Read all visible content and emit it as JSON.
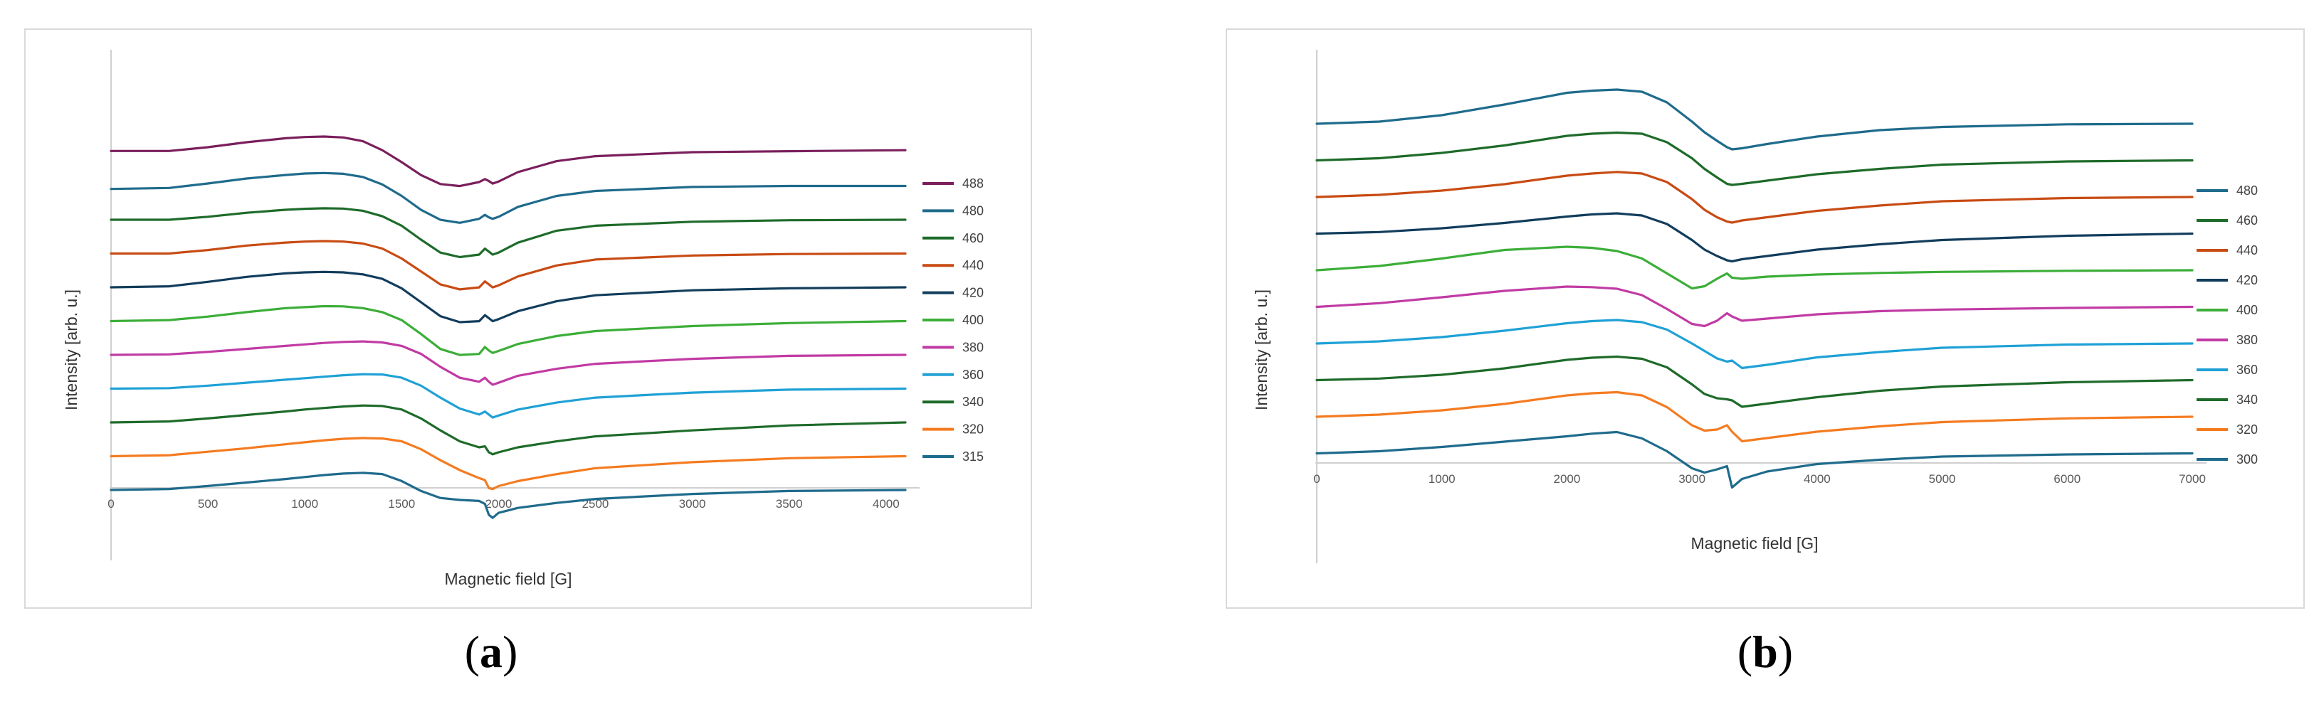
{
  "figure": {
    "captions": [
      {
        "open": "(",
        "letter": "a",
        "close": ")"
      },
      {
        "open": "(",
        "letter": "b",
        "close": ")"
      }
    ]
  },
  "chart_data": [
    {
      "panel": "a",
      "type": "line",
      "xlabel": "Magnetic field [G]",
      "ylabel": "Intensity [arb. u.]",
      "xlim": [
        0,
        4100
      ],
      "xticks": [
        0,
        500,
        1000,
        1500,
        2000,
        2500,
        3000,
        3500,
        4000
      ],
      "x_tick_labels": [
        "0",
        "500",
        "1000",
        "1500",
        "2000",
        "2500",
        "3000",
        "3500",
        "4000"
      ],
      "y_tick_labels": false,
      "legend_position": "right",
      "x": [
        0,
        300,
        500,
        700,
        900,
        1000,
        1100,
        1200,
        1300,
        1400,
        1500,
        1600,
        1700,
        1800,
        1900,
        1930,
        1950,
        1970,
        2000,
        2100,
        2300,
        2500,
        3000,
        3500,
        4100
      ],
      "colors": {
        "488": "#7a1f5c",
        "480": "#1f6b8c",
        "460": "#1e6b2a",
        "440": "#c84b13",
        "420": "#123d5c",
        "400": "#3cae38",
        "380": "#c13ba4",
        "360": "#1fa1d6",
        "340": "#1e6b2a",
        "320": "#f47b20",
        "315": "#1f6b8c"
      },
      "series": [
        {
          "name": "488",
          "values": [
            0.12,
            0.12,
            0.5,
            1.0,
            1.4,
            1.52,
            1.57,
            1.48,
            1.1,
            0.2,
            -1.0,
            -2.3,
            -3.2,
            -3.4,
            -3.0,
            -2.7,
            -2.9,
            -3.15,
            -2.95,
            -2.0,
            -0.9,
            -0.4,
            0.0,
            0.1,
            0.2
          ]
        },
        {
          "name": "480",
          "values": [
            -0.3,
            -0.2,
            0.25,
            0.75,
            1.1,
            1.25,
            1.3,
            1.22,
            0.9,
            0.15,
            -1.0,
            -2.4,
            -3.4,
            -3.7,
            -3.3,
            -2.9,
            -3.15,
            -3.3,
            -3.1,
            -2.1,
            -1.0,
            -0.5,
            -0.1,
            0.0,
            0.0
          ]
        },
        {
          "name": "460",
          "values": [
            0.0,
            0.0,
            0.3,
            0.7,
            1.0,
            1.1,
            1.15,
            1.12,
            0.9,
            0.35,
            -0.6,
            -2.0,
            -3.3,
            -3.75,
            -3.5,
            -2.9,
            -3.2,
            -3.5,
            -3.3,
            -2.3,
            -1.1,
            -0.6,
            -0.2,
            -0.05,
            0.0
          ]
        },
        {
          "name": "440",
          "values": [
            0.0,
            0.0,
            0.35,
            0.8,
            1.1,
            1.2,
            1.25,
            1.2,
            1.0,
            0.5,
            -0.5,
            -1.8,
            -3.1,
            -3.6,
            -3.4,
            -2.8,
            -3.1,
            -3.4,
            -3.2,
            -2.3,
            -1.2,
            -0.6,
            -0.2,
            -0.05,
            0.0
          ]
        },
        {
          "name": "420",
          "values": [
            0.0,
            0.1,
            0.55,
            1.05,
            1.4,
            1.5,
            1.55,
            1.5,
            1.3,
            0.85,
            -0.1,
            -1.5,
            -2.9,
            -3.5,
            -3.4,
            -2.8,
            -3.1,
            -3.4,
            -3.2,
            -2.4,
            -1.4,
            -0.8,
            -0.3,
            -0.1,
            0.0
          ]
        },
        {
          "name": "400",
          "values": [
            0.0,
            0.1,
            0.45,
            0.9,
            1.3,
            1.4,
            1.5,
            1.48,
            1.3,
            0.9,
            0.1,
            -1.3,
            -2.8,
            -3.4,
            -3.3,
            -2.6,
            -2.95,
            -3.2,
            -3.0,
            -2.3,
            -1.5,
            -1.0,
            -0.5,
            -0.2,
            0.0
          ]
        },
        {
          "name": "380",
          "values": [
            0.0,
            0.05,
            0.3,
            0.6,
            0.9,
            1.05,
            1.2,
            1.3,
            1.35,
            1.25,
            0.9,
            0.1,
            -1.2,
            -2.3,
            -2.7,
            -2.3,
            -2.7,
            -3.0,
            -2.8,
            -2.1,
            -1.4,
            -0.9,
            -0.4,
            -0.1,
            0.0
          ]
        },
        {
          "name": "360",
          "values": [
            0.0,
            0.05,
            0.3,
            0.6,
            0.9,
            1.05,
            1.2,
            1.35,
            1.45,
            1.42,
            1.1,
            0.3,
            -0.9,
            -2.0,
            -2.6,
            -2.3,
            -2.6,
            -2.9,
            -2.7,
            -2.1,
            -1.4,
            -0.9,
            -0.4,
            -0.1,
            0.0
          ]
        },
        {
          "name": "340",
          "values": [
            0.0,
            0.1,
            0.4,
            0.75,
            1.1,
            1.3,
            1.45,
            1.6,
            1.7,
            1.65,
            1.3,
            0.4,
            -0.8,
            -1.9,
            -2.5,
            -2.4,
            -3.0,
            -3.2,
            -3.0,
            -2.5,
            -1.9,
            -1.4,
            -0.8,
            -0.3,
            0.0
          ]
        },
        {
          "name": "320",
          "values": [
            0.0,
            0.1,
            0.45,
            0.8,
            1.2,
            1.4,
            1.6,
            1.75,
            1.82,
            1.78,
            1.5,
            0.7,
            -0.4,
            -1.4,
            -2.2,
            -2.4,
            -3.2,
            -3.3,
            -3.0,
            -2.5,
            -1.8,
            -1.2,
            -0.6,
            -0.2,
            0.0
          ]
        },
        {
          "name": "315",
          "values": [
            0.0,
            0.1,
            0.4,
            0.75,
            1.1,
            1.3,
            1.5,
            1.65,
            1.72,
            1.6,
            0.9,
            -0.1,
            -0.8,
            -1.0,
            -1.1,
            -1.4,
            -2.5,
            -2.8,
            -2.3,
            -1.8,
            -1.3,
            -0.9,
            -0.4,
            -0.1,
            0.0
          ]
        }
      ]
    },
    {
      "panel": "b",
      "type": "line",
      "xlabel": "Magnetic field [G]",
      "ylabel": "Intensity [arb. u.]",
      "xlim": [
        0,
        7000
      ],
      "xticks": [
        0,
        1000,
        2000,
        3000,
        4000,
        5000,
        6000,
        7000
      ],
      "x_tick_labels": [
        "0",
        "1000",
        "2000",
        "3000",
        "4000",
        "5000",
        "6000",
        "7000"
      ],
      "y_tick_labels": false,
      "legend_position": "right",
      "x": [
        0,
        500,
        1000,
        1500,
        2000,
        2200,
        2400,
        2600,
        2800,
        3000,
        3100,
        3200,
        3280,
        3320,
        3400,
        3600,
        4000,
        4500,
        5000,
        6000,
        7000
      ],
      "colors": {
        "480": "#1f6b8c",
        "460": "#1e6b2a",
        "440": "#c84b13",
        "420": "#123d5c",
        "400": "#3cae38",
        "380": "#c13ba4",
        "360": "#1fa1d6",
        "340": "#1e6b2a",
        "320": "#f47b20",
        "300": "#1f6b8c"
      },
      "series": [
        {
          "name": "480",
          "values": [
            0.0,
            0.2,
            0.8,
            1.8,
            2.9,
            3.1,
            3.2,
            3.0,
            2.0,
            0.2,
            -0.8,
            -1.6,
            -2.2,
            -2.4,
            -2.3,
            -1.9,
            -1.2,
            -0.6,
            -0.3,
            -0.05,
            0.0
          ]
        },
        {
          "name": "460",
          "values": [
            0.0,
            0.2,
            0.7,
            1.4,
            2.3,
            2.5,
            2.6,
            2.5,
            1.7,
            0.2,
            -0.8,
            -1.6,
            -2.2,
            -2.3,
            -2.2,
            -1.9,
            -1.3,
            -0.8,
            -0.4,
            -0.1,
            0.0
          ]
        },
        {
          "name": "440",
          "values": [
            0.0,
            0.2,
            0.6,
            1.2,
            2.0,
            2.2,
            2.35,
            2.2,
            1.4,
            -0.2,
            -1.2,
            -1.9,
            -2.3,
            -2.4,
            -2.2,
            -1.9,
            -1.3,
            -0.8,
            -0.4,
            -0.1,
            0.0
          ]
        },
        {
          "name": "420",
          "values": [
            0.0,
            0.15,
            0.5,
            1.0,
            1.6,
            1.8,
            1.9,
            1.7,
            0.9,
            -0.6,
            -1.5,
            -2.1,
            -2.5,
            -2.6,
            -2.4,
            -2.1,
            -1.5,
            -1.0,
            -0.6,
            -0.2,
            0.0
          ]
        },
        {
          "name": "400",
          "values": [
            0.0,
            0.4,
            1.1,
            1.9,
            2.2,
            2.1,
            1.8,
            1.1,
            -0.3,
            -1.7,
            -1.5,
            -0.8,
            -0.3,
            -0.7,
            -0.8,
            -0.6,
            -0.4,
            -0.25,
            -0.15,
            -0.05,
            0.0
          ]
        },
        {
          "name": "380",
          "values": [
            0.0,
            0.35,
            0.9,
            1.5,
            1.9,
            1.85,
            1.7,
            1.1,
            -0.2,
            -1.6,
            -1.8,
            -1.3,
            -0.6,
            -0.9,
            -1.3,
            -1.1,
            -0.7,
            -0.4,
            -0.25,
            -0.1,
            0.0
          ]
        },
        {
          "name": "360",
          "values": [
            0.0,
            0.2,
            0.6,
            1.2,
            1.9,
            2.1,
            2.2,
            2.0,
            1.3,
            0.0,
            -0.7,
            -1.4,
            -1.7,
            -1.6,
            -2.3,
            -2.0,
            -1.3,
            -0.8,
            -0.4,
            -0.1,
            0.0
          ]
        },
        {
          "name": "340",
          "values": [
            0.0,
            0.15,
            0.5,
            1.1,
            1.9,
            2.1,
            2.2,
            2.0,
            1.2,
            -0.4,
            -1.3,
            -1.7,
            -1.8,
            -1.9,
            -2.5,
            -2.2,
            -1.6,
            -1.0,
            -0.6,
            -0.2,
            0.0
          ]
        },
        {
          "name": "320",
          "values": [
            0.0,
            0.2,
            0.6,
            1.2,
            2.0,
            2.2,
            2.3,
            2.0,
            0.9,
            -0.8,
            -1.3,
            -1.2,
            -0.8,
            -1.4,
            -2.3,
            -2.0,
            -1.4,
            -0.9,
            -0.5,
            -0.15,
            0.0
          ]
        },
        {
          "name": "300",
          "values": [
            0.0,
            0.2,
            0.6,
            1.1,
            1.6,
            1.85,
            2.0,
            1.4,
            0.2,
            -1.4,
            -1.8,
            -1.5,
            -1.2,
            -3.2,
            -2.4,
            -1.7,
            -1.0,
            -0.6,
            -0.3,
            -0.1,
            0.0
          ]
        }
      ]
    }
  ]
}
